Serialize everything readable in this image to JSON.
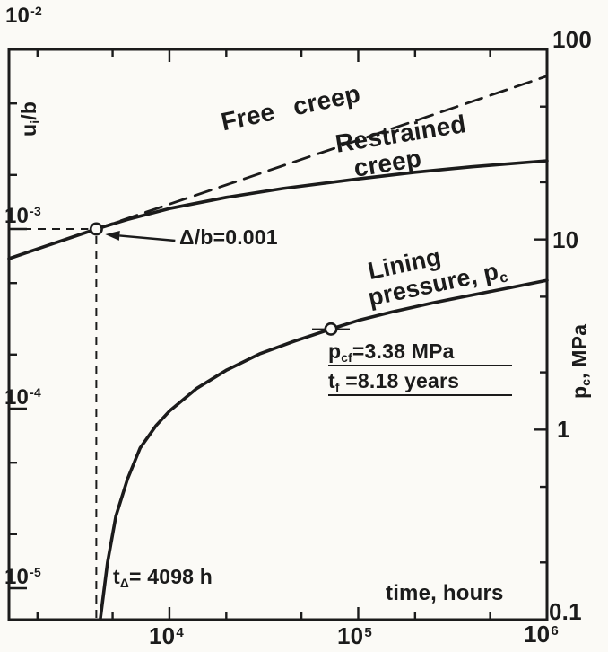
{
  "figure": {
    "bg": "#fbfaf6",
    "ink": "#1b1b1b"
  },
  "axes": {
    "left": {
      "title": {
        "p1": "u",
        "sub": "i",
        "p2": "/b"
      },
      "ticks": [
        {
          "base": "10",
          "exp": "-2"
        },
        {
          "base": "10",
          "exp": "-3"
        },
        {
          "base": "10",
          "exp": "-4"
        },
        {
          "base": "10",
          "exp": "-5"
        }
      ]
    },
    "right": {
      "title": {
        "p1": "p",
        "sub": "c",
        "p2": ", MPa"
      },
      "ticks": [
        "100",
        "10",
        "1",
        "0.1"
      ]
    },
    "bottom": {
      "title": "time, hours",
      "ticks": [
        {
          "base": "10",
          "exp": "4"
        },
        {
          "base": "10",
          "exp": "5"
        },
        {
          "base": "10",
          "exp": "6"
        }
      ]
    }
  },
  "curve_labels": {
    "free_creep": "Free  creep",
    "restrained_1": "Restrained",
    "restrained_2": "creep",
    "lining_1": "Lining",
    "lining_2a": "pressure, p",
    "lining_2sub": "c"
  },
  "annotations": {
    "delta_b": "Δ/b=0.001",
    "pcf": {
      "p1": "p",
      "sub": "cf",
      "p2": "=3.38 MPa"
    },
    "tf": {
      "p1": "t",
      "sub": "f",
      "p2": " =8.18 years"
    },
    "t_delta": {
      "p1": "t",
      "sub": "Δ",
      "p2": "= 4098 h"
    }
  },
  "chart_data": {
    "type": "line",
    "title": "",
    "x_axis": {
      "label": "time, hours",
      "scale": "log",
      "range_log10": [
        3.15,
        6.0
      ],
      "tick_values": [
        10000,
        100000,
        1000000
      ],
      "minor_tick_values": [
        2000,
        5000,
        20000,
        50000,
        200000,
        500000
      ]
    },
    "y_left_axis": {
      "label": "ui/b",
      "scale": "log",
      "range_log10": [
        -5.175,
        -2.0
      ],
      "tick_values": [
        0.01,
        0.001,
        0.0001,
        1e-05
      ],
      "minor_tick_values": [
        0.005,
        0.002,
        0.0005,
        0.0002,
        5e-05,
        2e-05
      ]
    },
    "y_right_axis": {
      "label": "pc, MPa",
      "scale": "log",
      "range_log10": [
        -1.0,
        2.0
      ],
      "tick_values": [
        100,
        10,
        1,
        0.1
      ],
      "minor_tick_values": [
        50,
        20,
        5,
        2,
        0.5,
        0.2
      ]
    },
    "series": [
      {
        "name": "Free creep",
        "axis": "left",
        "line": "dashed",
        "points": [
          [
            4098,
            0.001
          ],
          [
            1000000,
            0.0071
          ]
        ]
      },
      {
        "name": "Restrained creep",
        "axis": "left",
        "line": "solid",
        "points": [
          [
            1413,
            0.000684
          ],
          [
            2239,
            0.000806
          ],
          [
            3162,
            0.000912
          ],
          [
            4098,
            0.001
          ],
          [
            6000,
            0.00113
          ],
          [
            10000,
            0.0013
          ],
          [
            20000,
            0.0015
          ],
          [
            40000,
            0.00168
          ],
          [
            100000,
            0.0019
          ],
          [
            200000,
            0.00207
          ],
          [
            400000,
            0.00222
          ],
          [
            1000000,
            0.0024
          ]
        ]
      },
      {
        "name": "Lining pressure, pc",
        "axis": "right",
        "line": "solid",
        "points": [
          [
            4300,
            0.1
          ],
          [
            4700,
            0.2
          ],
          [
            5200,
            0.35
          ],
          [
            6000,
            0.55
          ],
          [
            7000,
            0.8
          ],
          [
            8500,
            1.05
          ],
          [
            10000,
            1.25
          ],
          [
            14000,
            1.65
          ],
          [
            20000,
            2.05
          ],
          [
            30000,
            2.5
          ],
          [
            45000,
            2.9
          ],
          [
            71657,
            3.38
          ],
          [
            100000,
            3.75
          ],
          [
            150000,
            4.15
          ],
          [
            250000,
            4.65
          ],
          [
            400000,
            5.1
          ],
          [
            650000,
            5.6
          ],
          [
            1000000,
            6.1
          ]
        ]
      }
    ],
    "markers": [
      {
        "x": 4098,
        "y": 0.001,
        "axis": "left",
        "label": "Δ/b=0.001",
        "guides": "dashed-to-axes",
        "arrow": true
      },
      {
        "x": 71657,
        "y": 3.38,
        "axis": "right",
        "label": "pcf=3.38 MPa, tf=8.18 years",
        "crosshair": true
      }
    ],
    "key_values": {
      "delta_over_b": 0.001,
      "t_delta_hours": 4098,
      "p_cf_MPa": 3.38,
      "t_f_years": 8.18
    }
  }
}
